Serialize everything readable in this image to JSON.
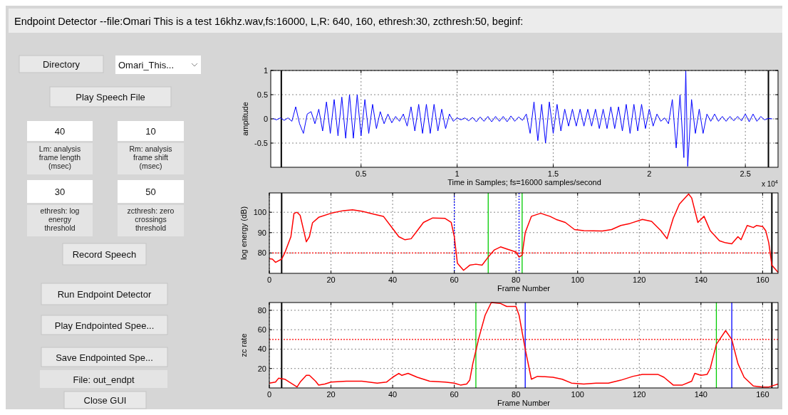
{
  "chart_data": [
    {
      "type": "other",
      "title": "Endpoint Detector --file:Omari This is a test 16khz.wav,fs:16000, L,R: 640, 160, ethresh:30, zcthresh:50, beginf:",
      "annotations": [
        "Directory",
        "Omari_This...",
        "Play Speech File",
        "40",
        "10",
        "Lm: analysis frame length (msec)",
        "Rm: analysis frame shift (msec)",
        "30",
        "50",
        "ethresh: log energy threshold",
        "zcthresh: zero crossings threshold",
        "Record Speech",
        "Run Endpoint Detector",
        "Play Endpointed Spee...",
        "Save Endpointed Spe...",
        "File: out_endpt",
        "Close GUI"
      ]
    },
    {
      "type": "line",
      "xlabel": "Time in Samples; fs=16000 samples/second",
      "ylabel": "amplitude",
      "annotations": [
        "x 10$^{4}$"
      ],
      "xlim": [
        0.03,
        2.67
      ],
      "ylim": [
        -1,
        1
      ],
      "xticks": [
        0.5,
        1,
        1.5,
        2,
        2.5
      ],
      "yticks": [
        -0.5,
        0,
        0.5,
        1
      ],
      "grid": true,
      "ref_lines": [
        {
          "axis": "x",
          "value": 0.085,
          "color": "#000000",
          "line_style": "solid"
        },
        {
          "axis": "x",
          "value": 2.62,
          "color": "#000000",
          "line_style": "solid"
        }
      ],
      "series": [
        {
          "color": "#0000ff",
          "x": [
            0.04,
            0.06,
            0.08,
            0.1,
            0.12,
            0.14,
            0.16,
            0.18,
            0.2,
            0.22,
            0.24,
            0.26,
            0.28,
            0.3,
            0.32,
            0.34,
            0.36,
            0.38,
            0.4,
            0.42,
            0.44,
            0.46,
            0.48,
            0.5,
            0.52,
            0.54,
            0.56,
            0.58,
            0.6,
            0.62,
            0.64,
            0.66,
            0.68,
            0.7,
            0.72,
            0.74,
            0.76,
            0.78,
            0.8,
            0.82,
            0.84,
            0.86,
            0.88,
            0.9,
            0.92,
            0.94,
            0.96,
            0.98,
            1,
            1.02,
            1.04,
            1.06,
            1.08,
            1.1,
            1.12,
            1.14,
            1.16,
            1.18,
            1.2,
            1.22,
            1.24,
            1.26,
            1.28,
            1.3,
            1.32,
            1.34,
            1.36,
            1.38,
            1.4,
            1.42,
            1.44,
            1.46,
            1.48,
            1.5,
            1.52,
            1.54,
            1.56,
            1.58,
            1.6,
            1.62,
            1.64,
            1.66,
            1.68,
            1.7,
            1.72,
            1.74,
            1.76,
            1.78,
            1.8,
            1.82,
            1.84,
            1.86,
            1.88,
            1.9,
            1.92,
            1.94,
            1.96,
            1.98,
            2,
            2.02,
            2.04,
            2.06,
            2.08,
            2.1,
            2.12,
            2.14,
            2.16,
            2.18,
            2.19,
            2.2,
            2.22,
            2.24,
            2.26,
            2.28,
            2.3,
            2.32,
            2.34,
            2.36,
            2.38,
            2.4,
            2.42,
            2.44,
            2.46,
            2.48,
            2.5,
            2.52,
            2.54,
            2.56,
            2.58,
            2.6,
            2.62,
            2.64
          ],
          "values": [
            0.01,
            -0.02,
            0.02,
            -0.03,
            0.02,
            -0.05,
            0.25,
            -0.1,
            -0.3,
            0.1,
            0.15,
            -0.1,
            0.2,
            -0.25,
            0.35,
            -0.3,
            0.4,
            -0.35,
            0.45,
            -0.4,
            0.5,
            -0.4,
            0.5,
            -0.35,
            0.4,
            -0.3,
            0.3,
            -0.2,
            0.15,
            -0.1,
            0.1,
            -0.08,
            0.05,
            -0.05,
            0.1,
            -0.15,
            0.25,
            -0.25,
            0.3,
            -0.3,
            0.3,
            -0.3,
            0.3,
            -0.25,
            0.2,
            -0.2,
            0.1,
            -0.05,
            0.02,
            -0.02,
            0.02,
            -0.04,
            0.03,
            -0.06,
            0.04,
            -0.05,
            0.05,
            -0.06,
            0.05,
            -0.05,
            0.05,
            -0.06,
            0.06,
            -0.05,
            0.04,
            -0.03,
            0.1,
            -0.3,
            0.35,
            -0.45,
            0.3,
            -0.5,
            0.35,
            -0.3,
            0.3,
            -0.25,
            0.2,
            -0.15,
            0.2,
            -0.15,
            0.2,
            -0.15,
            0.2,
            -0.15,
            0.2,
            -0.2,
            0.2,
            -0.2,
            0.25,
            -0.2,
            0.25,
            -0.25,
            0.3,
            -0.3,
            0.3,
            -0.25,
            0.3,
            -0.2,
            0.2,
            -0.15,
            0.1,
            -0.05,
            0.02,
            -0.1,
            0.4,
            -0.6,
            0.5,
            -0.8,
            1,
            -0.98,
            0.4,
            -0.3,
            0.2,
            -0.3,
            0.1,
            -0.05,
            0.1,
            -0.05,
            0.05,
            -0.05,
            0.05,
            -0.04,
            0.05,
            -0.04,
            0.1,
            -0.06,
            0.1,
            -0.05,
            0.05,
            -0.02,
            0.01,
            0
          ]
        }
      ]
    },
    {
      "type": "line",
      "xlabel": "Frame Number",
      "ylabel": "log energy (dB)",
      "xlim": [
        0,
        165
      ],
      "ylim": [
        70,
        109.5
      ],
      "xticks": [
        0,
        20,
        40,
        60,
        80,
        100,
        120,
        140,
        160
      ],
      "yticks": [
        80,
        90,
        100
      ],
      "grid": true,
      "ref_lines": [
        {
          "axis": "y",
          "value": 80,
          "color": "#ff0000",
          "line_style": "dotted"
        },
        {
          "axis": "x",
          "value": 4,
          "color": "#000000",
          "line_style": "solid"
        },
        {
          "axis": "x",
          "value": 163,
          "color": "#000000",
          "line_style": "solid"
        },
        {
          "axis": "x",
          "value": 60,
          "color": "#0000ff",
          "line_style": "dotted"
        },
        {
          "axis": "x",
          "value": 81,
          "color": "#0000ff",
          "line_style": "dotted"
        },
        {
          "axis": "x",
          "value": 71,
          "color": "#00cc00",
          "line_style": "solid"
        },
        {
          "axis": "x",
          "value": 82,
          "color": "#00cc00",
          "line_style": "solid"
        }
      ],
      "series": [
        {
          "color": "#ff0000",
          "x": [
            0,
            1,
            2,
            4,
            5,
            7,
            8,
            9,
            10,
            11,
            12,
            13,
            14,
            16,
            20,
            24,
            27,
            30,
            34,
            37,
            40,
            42,
            44,
            46,
            48,
            50,
            53,
            57,
            59,
            60,
            61,
            63,
            65,
            67,
            69,
            71,
            73,
            75,
            77,
            80,
            81,
            82,
            83,
            85,
            88,
            91,
            93,
            96,
            99,
            102,
            108,
            111,
            114,
            117,
            121,
            124,
            127,
            129,
            131,
            133,
            136,
            137,
            139,
            141,
            143,
            146,
            148,
            150,
            152,
            153,
            155,
            157,
            158,
            160,
            161,
            162,
            163,
            165
          ],
          "values": [
            77.2,
            77,
            75.4,
            77,
            80,
            88,
            99.4,
            100,
            98.5,
            92,
            85.5,
            88,
            94.8,
            97.5,
            99.5,
            100.8,
            101.2,
            100.5,
            99,
            98,
            92,
            88,
            86.5,
            87,
            91,
            95,
            97.2,
            97,
            95,
            88,
            75,
            71.5,
            74,
            74.5,
            74,
            78,
            81.5,
            83,
            82,
            80.5,
            78,
            79,
            90,
            98,
            99.5,
            98,
            96.5,
            95,
            91.5,
            91,
            90.8,
            91.5,
            93.5,
            94.5,
            96.5,
            95.5,
            91,
            87,
            97,
            104,
            109,
            107,
            95,
            98,
            91,
            86,
            85,
            84.5,
            88,
            86.5,
            93.5,
            92.5,
            93.5,
            93,
            91,
            85,
            74,
            70.5
          ]
        }
      ]
    },
    {
      "type": "line",
      "xlabel": "Frame Number",
      "ylabel": "zc rate",
      "xlim": [
        0,
        165
      ],
      "ylim": [
        0,
        88
      ],
      "xticks": [
        0,
        20,
        40,
        60,
        80,
        100,
        120,
        140,
        160
      ],
      "yticks": [
        20,
        40,
        60,
        80
      ],
      "grid": true,
      "ref_lines": [
        {
          "axis": "y",
          "value": 50,
          "color": "#ff0000",
          "line_style": "dotted"
        },
        {
          "axis": "x",
          "value": 4,
          "color": "#000000",
          "line_style": "solid"
        },
        {
          "axis": "x",
          "value": 163,
          "color": "#000000",
          "line_style": "solid"
        },
        {
          "axis": "x",
          "value": 67,
          "color": "#00cc00",
          "line_style": "solid"
        },
        {
          "axis": "x",
          "value": 145,
          "color": "#00cc00",
          "line_style": "solid"
        },
        {
          "axis": "x",
          "value": 83,
          "color": "#0000ff",
          "line_style": "solid"
        },
        {
          "axis": "x",
          "value": 150,
          "color": "#0000ff",
          "line_style": "solid"
        }
      ],
      "series": [
        {
          "color": "#ff0000",
          "x": [
            0,
            2,
            3,
            5,
            7,
            9,
            10,
            12,
            13,
            15,
            16,
            18,
            20,
            25,
            30,
            35,
            38,
            40,
            42,
            43,
            45,
            48,
            52,
            57,
            60,
            62,
            64,
            65,
            66,
            68,
            70,
            72,
            75,
            77,
            80,
            81,
            83,
            85,
            87,
            92,
            95,
            98,
            102,
            106,
            110,
            114,
            118,
            121,
            126,
            128,
            131,
            134,
            137,
            138,
            140,
            142,
            143,
            145,
            148,
            150,
            152,
            154,
            157,
            160,
            162,
            164,
            165
          ],
          "values": [
            5,
            6,
            10,
            9,
            5,
            1,
            6,
            13,
            13,
            7,
            3,
            4,
            6,
            7,
            7,
            5,
            6,
            11,
            15,
            13,
            15,
            11,
            7,
            6,
            5,
            3,
            4,
            8,
            25,
            52,
            75,
            88,
            87,
            84,
            84,
            75,
            40,
            9,
            12,
            11,
            9,
            5,
            4,
            5,
            5,
            8,
            12,
            14,
            14,
            11,
            3,
            3,
            7,
            15,
            13,
            14,
            20,
            45,
            59,
            50,
            25,
            11,
            2,
            1,
            1,
            3,
            4
          ]
        }
      ]
    }
  ]
}
